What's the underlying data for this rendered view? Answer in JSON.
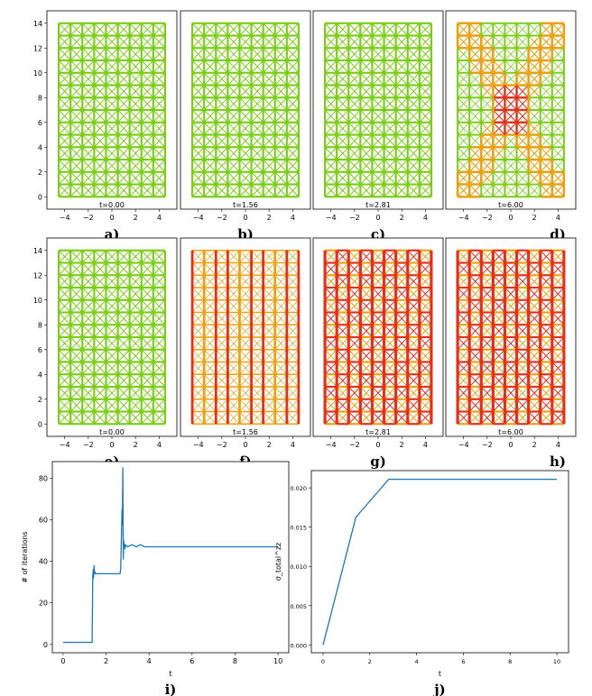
{
  "chart_data": [
    {
      "type": "lattice",
      "panel_label": "a)",
      "time_label": "t=0.00",
      "xlim": [
        -5.5,
        5.5
      ],
      "ylim": [
        -1,
        15
      ],
      "xticks": [
        "−4",
        "−2",
        "0",
        "2",
        "4"
      ],
      "yticks": [
        "0",
        "2",
        "4",
        "6",
        "8",
        "10",
        "12",
        "14"
      ],
      "show_yticks": true,
      "row_index": 0,
      "col_index": 0,
      "color_scheme": "green",
      "damage": 0
    },
    {
      "type": "lattice",
      "panel_label": "b)",
      "time_label": "t=1.56",
      "xlim": [
        -5.5,
        5.5
      ],
      "ylim": [
        -1,
        15
      ],
      "xticks": [
        "−4",
        "−2",
        "0",
        "2",
        "4"
      ],
      "show_yticks": false,
      "row_index": 0,
      "col_index": 1,
      "color_scheme": "green",
      "damage": 0
    },
    {
      "type": "lattice",
      "panel_label": "c)",
      "time_label": "t=2.81",
      "xlim": [
        -5.5,
        5.5
      ],
      "ylim": [
        -1,
        15
      ],
      "xticks": [
        "−4",
        "−2",
        "0",
        "2",
        "4"
      ],
      "show_yticks": false,
      "row_index": 0,
      "col_index": 2,
      "color_scheme": "green",
      "damage": 0.1
    },
    {
      "type": "lattice",
      "panel_label": "d)",
      "time_label": "t=6.00",
      "xlim": [
        -5.5,
        5.5
      ],
      "ylim": [
        -1,
        15
      ],
      "xticks": [
        "−4",
        "−2",
        "0",
        "2",
        "4"
      ],
      "show_yticks": false,
      "row_index": 0,
      "col_index": 3,
      "color_scheme": "damage-x",
      "damage": 0.5
    },
    {
      "type": "lattice",
      "panel_label": "e)",
      "time_label": "t=0.00",
      "xlim": [
        -5.5,
        5.5
      ],
      "ylim": [
        -1,
        15
      ],
      "xticks": [
        "−4",
        "−2",
        "0",
        "2",
        "4"
      ],
      "yticks": [
        "0",
        "2",
        "4",
        "6",
        "8",
        "10",
        "12",
        "14"
      ],
      "show_yticks": true,
      "row_index": 1,
      "col_index": 0,
      "color_scheme": "green",
      "damage": 0
    },
    {
      "type": "lattice",
      "panel_label": "f)",
      "time_label": "t=1.56",
      "xlim": [
        -5.5,
        5.5
      ],
      "ylim": [
        -1,
        15
      ],
      "xticks": [
        "−4",
        "−2",
        "0",
        "2",
        "4"
      ],
      "show_yticks": false,
      "row_index": 1,
      "col_index": 1,
      "color_scheme": "orange-red",
      "damage": 0.4
    },
    {
      "type": "lattice",
      "panel_label": "g)",
      "time_label": "t=2.81",
      "xlim": [
        -5.5,
        5.5
      ],
      "ylim": [
        -1,
        15
      ],
      "xticks": [
        "−4",
        "−2",
        "0",
        "2",
        "4"
      ],
      "show_yticks": false,
      "row_index": 1,
      "col_index": 2,
      "color_scheme": "red",
      "damage": 0.8
    },
    {
      "type": "lattice",
      "panel_label": "h)",
      "time_label": "t=6.00",
      "xlim": [
        -5.5,
        5.5
      ],
      "ylim": [
        -1,
        15
      ],
      "xticks": [
        "−4",
        "−2",
        "0",
        "2",
        "4"
      ],
      "show_yticks": false,
      "row_index": 1,
      "col_index": 3,
      "color_scheme": "red",
      "damage": 0.9
    },
    {
      "type": "line",
      "panel_label": "i)",
      "xlabel": "t",
      "ylabel": "# of iterations",
      "xlim": [
        -0.5,
        10.5
      ],
      "ylim": [
        -4,
        88
      ],
      "xticks": [
        "0",
        "2",
        "4",
        "6",
        "8",
        "10"
      ],
      "yticks": [
        "0",
        "20",
        "40",
        "60",
        "80"
      ],
      "series": [
        {
          "name": "iterations",
          "color": "#1f77b4",
          "x": [
            0,
            1.35,
            1.36,
            1.38,
            1.4,
            1.42,
            1.44,
            1.46,
            1.48,
            1.5,
            2.65,
            2.68,
            2.7,
            2.72,
            2.74,
            2.76,
            2.78,
            2.8,
            2.82,
            2.84,
            2.86,
            2.88,
            2.9,
            3.0,
            3.2,
            3.4,
            3.6,
            3.8,
            4.0,
            6,
            8,
            10
          ],
          "y": [
            1,
            1,
            10,
            33,
            36,
            32,
            38,
            34,
            35,
            34,
            34,
            36,
            45,
            55,
            65,
            58,
            85,
            41,
            50,
            47,
            48,
            46,
            48,
            47,
            48,
            47,
            48,
            47,
            47,
            47,
            47,
            47
          ]
        }
      ]
    },
    {
      "type": "line",
      "panel_label": "j)",
      "xlabel": "t",
      "ylabel": "σ_total^zz",
      "xlim": [
        -0.5,
        10.5
      ],
      "ylim": [
        -0.001,
        0.0222
      ],
      "xticks": [
        "0",
        "2",
        "4",
        "6",
        "8",
        "10"
      ],
      "yticks": [
        "0.000",
        "0.005",
        "0.010",
        "0.015",
        "0.020"
      ],
      "series": [
        {
          "name": "stress",
          "color": "#1f77b4",
          "x": [
            0,
            1.4,
            1.56,
            2.81,
            10
          ],
          "y": [
            0,
            0.0162,
            0.0168,
            0.0211,
            0.0211
          ]
        }
      ]
    }
  ]
}
